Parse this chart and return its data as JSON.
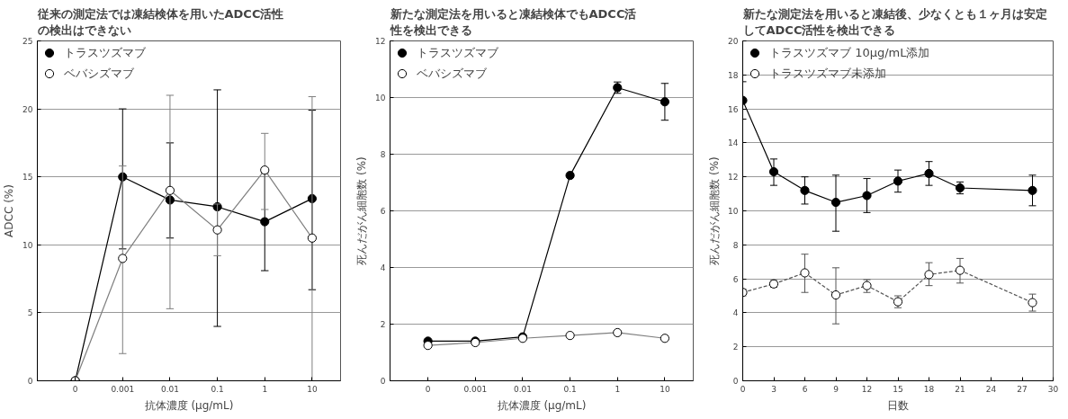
{
  "chart_data": [
    {
      "type": "line",
      "title": "従来の測定法では凍結検体を用いたADCC活性の検出はできない",
      "xlabel": "抗体濃度 (μg/mL)",
      "ylabel": "ADCC (%)",
      "categories": [
        "0",
        "0.001",
        "0.01",
        "0.1",
        "1",
        "10"
      ],
      "ylim": [
        0,
        25
      ],
      "yticks": [
        0,
        5,
        10,
        15,
        20,
        25
      ],
      "grid": "y",
      "legend": "top left",
      "marker": "circle",
      "series": [
        {
          "name": "トラスツズマブ",
          "color": "#000000",
          "line_style": "solid",
          "values": [
            0,
            15,
            13.3,
            12.8,
            11.7,
            13.4
          ],
          "errors": [
            null,
            [
              9.7,
              20
            ],
            [
              10.5,
              17.5
            ],
            [
              4,
              21.4
            ],
            [
              8.1,
              15.3
            ],
            [
              6.7,
              19.9
            ]
          ]
        },
        {
          "name": "ベバシズマブ",
          "color": "#7f7f7f",
          "line_style": "solid",
          "values": [
            0,
            9,
            14,
            11.1,
            15.5,
            10.5
          ],
          "errors": [
            null,
            [
              2,
              15.8
            ],
            [
              5.3,
              21
            ],
            [
              9.2,
              13
            ],
            [
              12.6,
              18.2
            ],
            [
              0,
              20.9
            ]
          ]
        }
      ]
    },
    {
      "type": "line",
      "title": "新たな測定法を用いると凍結検体でもADCC活性を検出できる",
      "xlabel": "抗体濃度 (μg/mL)",
      "ylabel": "死んだがん細胞数 (%)",
      "categories": [
        "0",
        "0.001",
        "0.01",
        "0.1",
        "1",
        "10"
      ],
      "ylim": [
        0,
        12
      ],
      "yticks": [
        0,
        2,
        4,
        6,
        8,
        10,
        12
      ],
      "grid": "y",
      "legend": "top left",
      "marker": "circle",
      "series": [
        {
          "name": "トラスツズマブ",
          "color": "#000000",
          "line_style": "solid",
          "values": [
            1.4,
            1.4,
            1.55,
            7.25,
            10.35,
            9.85
          ],
          "errors": [
            null,
            null,
            null,
            null,
            [
              10.15,
              10.55
            ],
            [
              9.2,
              10.5
            ]
          ]
        },
        {
          "name": "ベバシズマブ",
          "color": "#7f7f7f",
          "line_style": "solid",
          "values": [
            1.25,
            1.35,
            1.5,
            1.6,
            1.7,
            1.5
          ]
        }
      ]
    },
    {
      "type": "line",
      "title": "新たな測定法を用いると凍結後、少なくとも１ヶ月は安定してADCC活性を検出できる",
      "xlabel": "日数",
      "ylabel": "死んだがん細胞数 (%)",
      "x": [
        0,
        3,
        6,
        9,
        12,
        15,
        18,
        21,
        28
      ],
      "xlim": [
        0,
        30
      ],
      "xticks": [
        0,
        3,
        6,
        9,
        12,
        15,
        18,
        21,
        24,
        27,
        30
      ],
      "ylim": [
        0,
        20
      ],
      "yticks": [
        0,
        2,
        4,
        6,
        8,
        10,
        12,
        14,
        16,
        18,
        20
      ],
      "grid": "y",
      "legend": "top left",
      "marker": "circle",
      "series": [
        {
          "name": "トラスツズマブ 10μg/mL添加",
          "color": "#000000",
          "line_style": "solid",
          "values": [
            16.5,
            12.3,
            11.2,
            10.5,
            10.9,
            11.75,
            12.2,
            11.35,
            11.2
          ],
          "errors": [
            [
              15.4,
              17.6
            ],
            [
              11.5,
              13.05
            ],
            [
              10.4,
              12
            ],
            [
              8.8,
              12.1
            ],
            [
              9.9,
              11.9
            ],
            [
              11.1,
              12.4
            ],
            [
              11.5,
              12.9
            ],
            [
              11,
              11.7
            ],
            [
              10.3,
              12.1
            ]
          ]
        },
        {
          "name": "トラスツズマブ未添加",
          "color": "#555555",
          "line_style": "dashed",
          "values": [
            5.2,
            5.7,
            6.35,
            5.05,
            5.6,
            4.65,
            6.25,
            6.5,
            4.6
          ],
          "errors": [
            [
              5.0,
              5.4
            ],
            [
              5.5,
              5.9
            ],
            [
              5.2,
              7.45
            ],
            [
              3.35,
              6.65
            ],
            [
              5.2,
              5.95
            ],
            [
              4.3,
              5.0
            ],
            [
              5.6,
              6.95
            ],
            [
              5.75,
              7.2
            ],
            [
              4.1,
              5.1
            ]
          ]
        }
      ]
    }
  ]
}
